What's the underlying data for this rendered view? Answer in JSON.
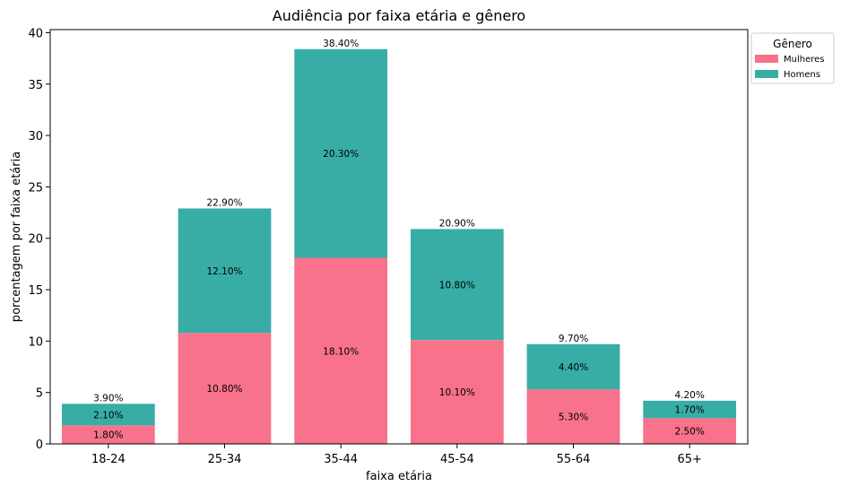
{
  "chart_data": {
    "type": "bar",
    "stacked": true,
    "title": "Audiência por faixa etária e gênero",
    "xlabel": "faixa etária",
    "ylabel": "porcentagem por faixa etária",
    "categories": [
      "18-24",
      "25-34",
      "35-44",
      "45-54",
      "55-64",
      "65+"
    ],
    "series": [
      {
        "name": "Mulheres",
        "color": "#f7728a",
        "values": [
          1.8,
          10.8,
          18.1,
          10.1,
          5.3,
          2.5
        ],
        "labels": [
          "1.80%",
          "10.80%",
          "18.10%",
          "10.10%",
          "5.30%",
          "2.50%"
        ]
      },
      {
        "name": "Homens",
        "color": "#38ada6",
        "values": [
          2.1,
          12.1,
          20.3,
          10.8,
          4.4,
          1.7
        ],
        "labels": [
          "2.10%",
          "12.10%",
          "20.30%",
          "10.80%",
          "4.40%",
          "1.70%"
        ]
      }
    ],
    "totals": [
      3.9,
      22.9,
      38.4,
      20.9,
      9.7,
      4.2
    ],
    "total_labels": [
      "3.90%",
      "22.90%",
      "38.40%",
      "20.90%",
      "9.70%",
      "4.20%"
    ],
    "yticks": [
      0,
      5,
      10,
      15,
      20,
      25,
      30,
      35,
      40
    ],
    "ylim": [
      0,
      40.3
    ],
    "grid": false,
    "legend": {
      "title": "Gênero",
      "placement": "outside-top-right"
    }
  }
}
